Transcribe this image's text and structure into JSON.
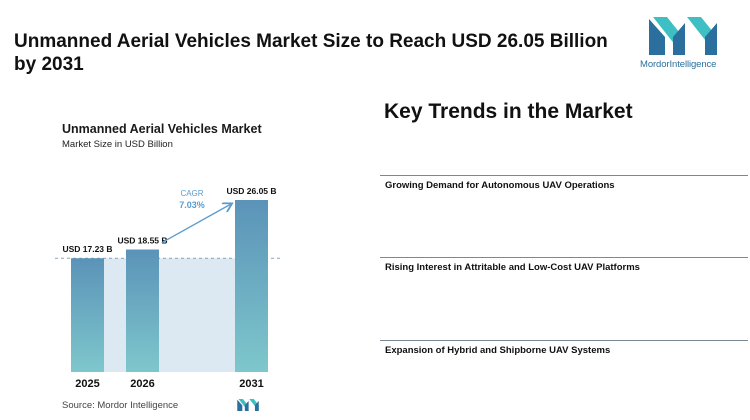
{
  "headline": "Unmanned Aerial Vehicles Market Size to Reach USD 26.05 Billion by 2031",
  "brand": {
    "name_part1": "Mordor",
    "name_part2": "Intelligence",
    "color": "#2a6f9e",
    "accent": "#3dbfc4"
  },
  "chart_data": {
    "type": "bar",
    "title": "Unmanned Aerial Vehicles Market",
    "subtitle": "Market Size in USD Billion",
    "categories": [
      "2025",
      "2026",
      "2031"
    ],
    "values": [
      17.23,
      18.55,
      26.05
    ],
    "value_labels": [
      "USD 17.23 B",
      "USD 18.55 B",
      "USD 26.05 B"
    ],
    "annotation": {
      "label": "CAGR",
      "value": "7.03%"
    },
    "ylim": [
      0,
      26.05
    ],
    "grid": false,
    "colors": {
      "bar_top": "#5b93b8",
      "bar_bottom": "#7ec7cc",
      "band": "#dde9f2",
      "annotation": "#5a9ccf"
    }
  },
  "source": "Source: Mordor Intelligence",
  "trends": {
    "title": "Key Trends in the Market",
    "items": [
      "Growing Demand for Autonomous UAV Operations",
      "Rising Interest in Attritable and Low-Cost UAV Platforms",
      "Expansion of Hybrid and Shipborne UAV Systems"
    ]
  }
}
